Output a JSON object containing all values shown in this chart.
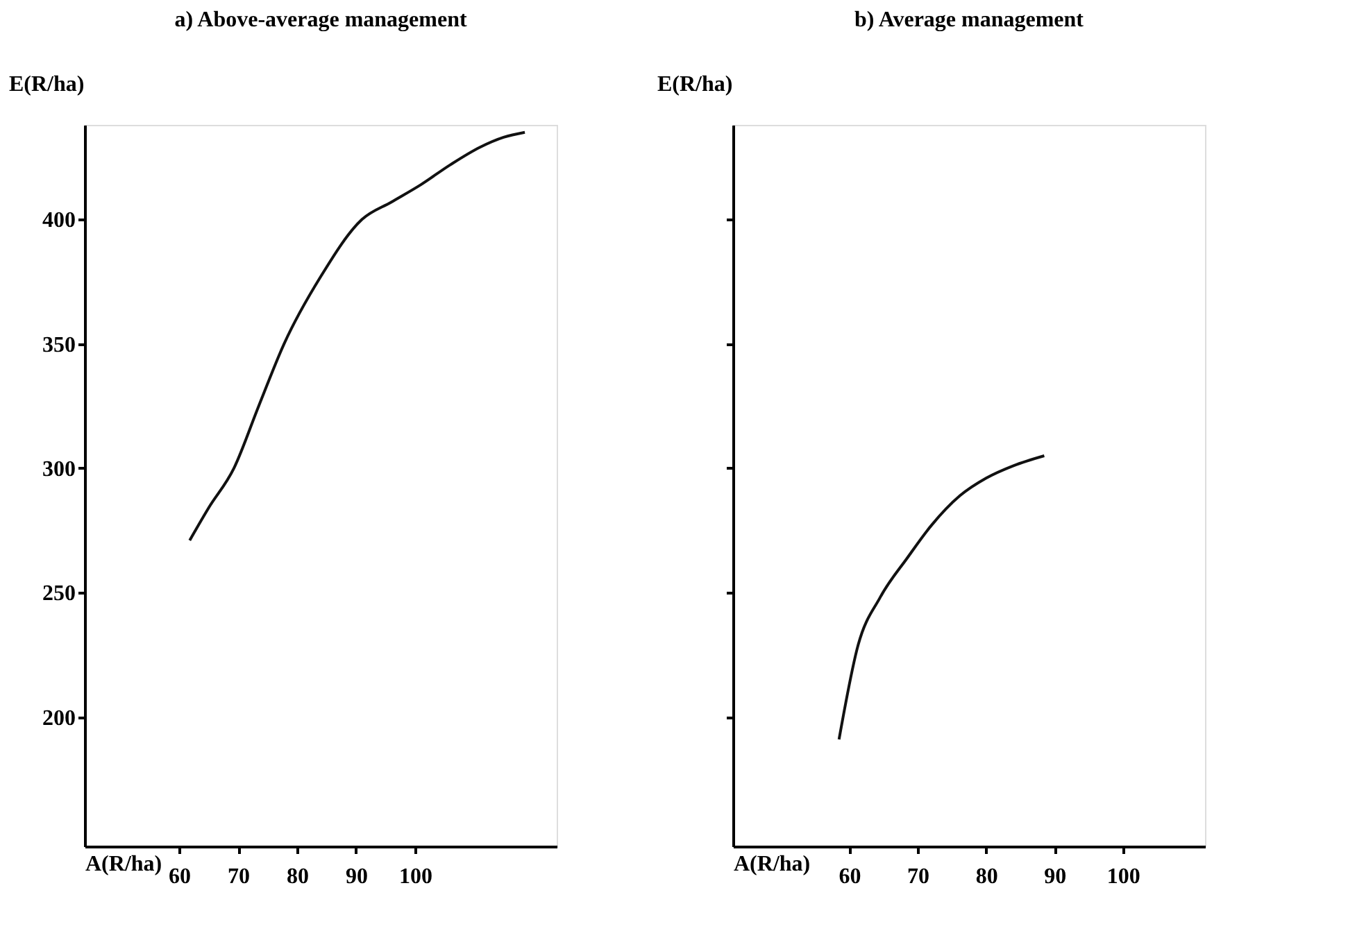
{
  "chart_data": [
    {
      "type": "line",
      "title": "a)  Above-average management",
      "xlabel": "A(R/ha)",
      "ylabel": "E(R/ha)",
      "xlim": [
        44,
        124
      ],
      "ylim": [
        148,
        438
      ],
      "xticks": [
        60,
        70,
        80,
        90,
        100
      ],
      "yticks": [
        200,
        250,
        300,
        350,
        400
      ],
      "grid": false,
      "series": [
        {
          "color": "#111111",
          "x": [
            61.8,
            65,
            69.3,
            73.5,
            77.8,
            84,
            91,
            96,
            101,
            106,
            111,
            115,
            118.6
          ],
          "values": [
            271,
            284,
            300,
            325,
            350,
            377,
            400,
            407,
            414,
            422,
            429,
            433,
            435
          ]
        }
      ]
    },
    {
      "type": "line",
      "title": "b)  Average management",
      "xlabel": "A(R/ha)",
      "ylabel": "E(R/ha)",
      "xlim": [
        43,
        112
      ],
      "ylim": [
        148,
        438
      ],
      "xticks": [
        60,
        70,
        80,
        90,
        100
      ],
      "yticks": [
        200,
        250,
        300,
        350,
        400
      ],
      "grid": false,
      "tick_labels": "x",
      "series": [
        {
          "color": "#111111",
          "x": [
            58.5,
            61.3,
            64.5,
            68.5,
            72,
            76.2,
            80,
            84,
            88.5
          ],
          "values": [
            191,
            229,
            248,
            264,
            277,
            289,
            296,
            301,
            305
          ]
        }
      ]
    }
  ]
}
